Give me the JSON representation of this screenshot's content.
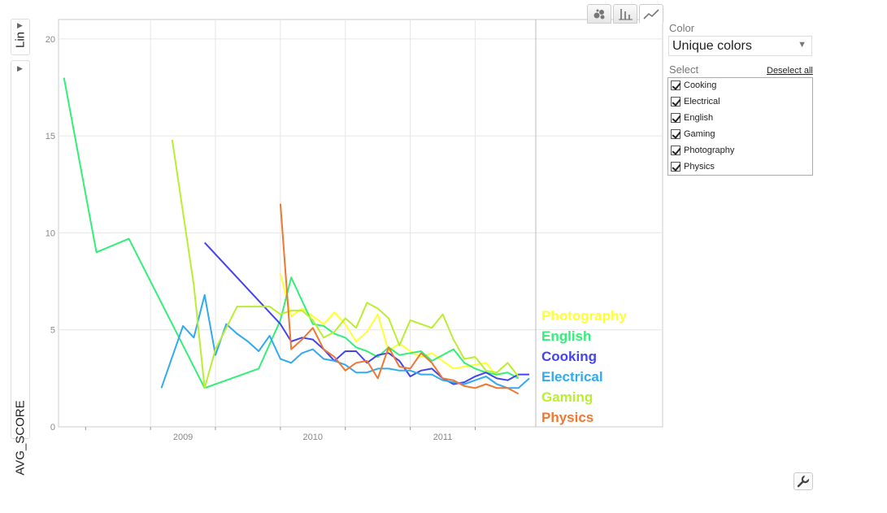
{
  "sidebar": {
    "scale_label": "Lin"
  },
  "view_buttons": [
    {
      "icon": "bubble-chart-icon"
    },
    {
      "icon": "bar-chart-icon"
    },
    {
      "icon": "line-chart-icon"
    }
  ],
  "panel": {
    "color_label": "Color",
    "color_value": "Unique colors",
    "select_label": "Select",
    "deselect_label": "Deselect all",
    "items": [
      "Cooking",
      "Electrical",
      "English",
      "Gaming",
      "Photography",
      "Physics"
    ]
  },
  "chart_data": {
    "type": "line",
    "title": "",
    "xlabel": "",
    "ylabel": "AVG_SCORE",
    "ylim": [
      0,
      21
    ],
    "yticks": [
      "0",
      "5",
      "10",
      "15",
      "20"
    ],
    "xticks": [
      "2009",
      "2010",
      "2011"
    ],
    "grid": true,
    "legend": "right (end-of-line labels)",
    "series": [
      {
        "name": "Photography",
        "color": "#ffff33",
        "points": [
          [
            "2010-01",
            7.9
          ],
          [
            "2010-02",
            5.7
          ],
          [
            "2010-03",
            6.1
          ],
          [
            "2010-04",
            5.7
          ],
          [
            "2010-05",
            5.3
          ],
          [
            "2010-06",
            5.9
          ],
          [
            "2010-07",
            5.3
          ],
          [
            "2010-08",
            4.4
          ],
          [
            "2010-09",
            4.9
          ],
          [
            "2010-10",
            5.8
          ],
          [
            "2010-11",
            3.9
          ],
          [
            "2010-12",
            4.3
          ],
          [
            "2011-01",
            3.9
          ],
          [
            "2011-02",
            3.6
          ],
          [
            "2011-03",
            3.8
          ],
          [
            "2011-04",
            3.4
          ],
          [
            "2011-05",
            3.0
          ],
          [
            "2011-06",
            3.1
          ],
          [
            "2011-07",
            3.2
          ],
          [
            "2011-08",
            3.3
          ],
          [
            "2011-09",
            2.6
          ]
        ]
      },
      {
        "name": "English",
        "color": "#33ee77",
        "points": [
          [
            "2008-05",
            18.0
          ],
          [
            "2008-08",
            9.0
          ],
          [
            "2008-11",
            9.7
          ],
          [
            "2009-06",
            2.0
          ],
          [
            "2009-11",
            3.0
          ],
          [
            "2010-01",
            5.5
          ],
          [
            "2010-02",
            7.7
          ],
          [
            "2010-03",
            6.5
          ],
          [
            "2010-04",
            5.3
          ],
          [
            "2010-05",
            5.2
          ],
          [
            "2010-06",
            4.8
          ],
          [
            "2010-07",
            4.6
          ],
          [
            "2010-08",
            4.1
          ],
          [
            "2010-09",
            3.9
          ],
          [
            "2010-10",
            3.6
          ],
          [
            "2010-11",
            4.1
          ],
          [
            "2010-12",
            3.7
          ],
          [
            "2011-01",
            3.8
          ],
          [
            "2011-02",
            3.9
          ],
          [
            "2011-03",
            3.4
          ],
          [
            "2011-04",
            3.7
          ],
          [
            "2011-05",
            4.0
          ],
          [
            "2011-06",
            3.3
          ],
          [
            "2011-07",
            3.0
          ],
          [
            "2011-08",
            2.8
          ],
          [
            "2011-09",
            2.7
          ],
          [
            "2011-10",
            2.8
          ],
          [
            "2011-11",
            2.5
          ]
        ]
      },
      {
        "name": "Cooking",
        "color": "#4444ee",
        "points": [
          [
            "2009-06",
            9.5
          ],
          [
            "2010-01",
            5.3
          ],
          [
            "2010-02",
            4.4
          ],
          [
            "2010-03",
            4.6
          ],
          [
            "2010-04",
            4.5
          ],
          [
            "2010-05",
            4.0
          ],
          [
            "2010-06",
            3.4
          ],
          [
            "2010-07",
            3.9
          ],
          [
            "2010-08",
            3.9
          ],
          [
            "2010-09",
            3.3
          ],
          [
            "2010-10",
            3.7
          ],
          [
            "2010-11",
            3.8
          ],
          [
            "2010-12",
            3.4
          ],
          [
            "2011-01",
            2.6
          ],
          [
            "2011-02",
            2.9
          ],
          [
            "2011-03",
            3.0
          ],
          [
            "2011-04",
            2.5
          ],
          [
            "2011-05",
            2.2
          ],
          [
            "2011-06",
            2.3
          ],
          [
            "2011-07",
            2.6
          ],
          [
            "2011-08",
            2.8
          ],
          [
            "2011-09",
            2.5
          ],
          [
            "2011-10",
            2.4
          ],
          [
            "2011-11",
            2.7
          ],
          [
            "2011-12",
            2.7
          ]
        ]
      },
      {
        "name": "Electrical",
        "color": "#33aaee",
        "points": [
          [
            "2009-02",
            2.0
          ],
          [
            "2009-04",
            5.2
          ],
          [
            "2009-05",
            4.6
          ],
          [
            "2009-06",
            6.8
          ],
          [
            "2009-07",
            3.7
          ],
          [
            "2009-08",
            5.3
          ],
          [
            "2009-09",
            4.8
          ],
          [
            "2009-10",
            4.4
          ],
          [
            "2009-11",
            3.9
          ],
          [
            "2009-12",
            4.7
          ],
          [
            "2010-01",
            3.5
          ],
          [
            "2010-02",
            3.3
          ],
          [
            "2010-03",
            3.8
          ],
          [
            "2010-04",
            4.0
          ],
          [
            "2010-05",
            3.5
          ],
          [
            "2010-06",
            3.4
          ],
          [
            "2010-07",
            3.2
          ],
          [
            "2010-08",
            2.8
          ],
          [
            "2010-09",
            2.8
          ],
          [
            "2010-10",
            3.0
          ],
          [
            "2010-11",
            3.0
          ],
          [
            "2010-12",
            2.9
          ],
          [
            "2011-01",
            2.9
          ],
          [
            "2011-02",
            2.7
          ],
          [
            "2011-03",
            2.7
          ],
          [
            "2011-04",
            2.4
          ],
          [
            "2011-05",
            2.3
          ],
          [
            "2011-06",
            2.2
          ],
          [
            "2011-07",
            2.4
          ],
          [
            "2011-08",
            2.6
          ],
          [
            "2011-09",
            2.2
          ],
          [
            "2011-10",
            2.0
          ],
          [
            "2011-11",
            2.0
          ],
          [
            "2011-12",
            2.5
          ]
        ]
      },
      {
        "name": "Gaming",
        "color": "#bbee33",
        "points": [
          [
            "2009-03",
            14.8
          ],
          [
            "2009-05",
            7.3
          ],
          [
            "2009-06",
            2.0
          ],
          [
            "2009-07",
            4.0
          ],
          [
            "2009-09",
            6.2
          ],
          [
            "2009-12",
            6.2
          ],
          [
            "2010-01",
            5.8
          ],
          [
            "2010-02",
            6.0
          ],
          [
            "2010-03",
            6.0
          ],
          [
            "2010-04",
            5.5
          ],
          [
            "2010-05",
            4.6
          ],
          [
            "2010-06",
            4.9
          ],
          [
            "2010-07",
            5.6
          ],
          [
            "2010-08",
            5.1
          ],
          [
            "2010-09",
            6.4
          ],
          [
            "2010-10",
            6.1
          ],
          [
            "2010-11",
            5.6
          ],
          [
            "2010-12",
            4.2
          ],
          [
            "2011-01",
            5.5
          ],
          [
            "2011-02",
            5.3
          ],
          [
            "2011-03",
            5.1
          ],
          [
            "2011-04",
            5.8
          ],
          [
            "2011-05",
            4.5
          ],
          [
            "2011-06",
            3.5
          ],
          [
            "2011-07",
            3.6
          ],
          [
            "2011-08",
            2.9
          ],
          [
            "2011-09",
            2.8
          ],
          [
            "2011-10",
            3.3
          ],
          [
            "2011-11",
            2.6
          ]
        ]
      },
      {
        "name": "Physics",
        "color": "#ee7733",
        "points": [
          [
            "2010-01",
            11.5
          ],
          [
            "2010-02",
            4.0
          ],
          [
            "2010-03",
            4.5
          ],
          [
            "2010-04",
            5.1
          ],
          [
            "2010-05",
            4.0
          ],
          [
            "2010-06",
            3.6
          ],
          [
            "2010-07",
            2.9
          ],
          [
            "2010-08",
            3.3
          ],
          [
            "2010-09",
            3.4
          ],
          [
            "2010-10",
            2.5
          ],
          [
            "2010-11",
            4.1
          ],
          [
            "2010-12",
            3.1
          ],
          [
            "2011-01",
            3.0
          ],
          [
            "2011-02",
            3.8
          ],
          [
            "2011-03",
            3.3
          ],
          [
            "2011-04",
            2.5
          ],
          [
            "2011-05",
            2.4
          ],
          [
            "2011-06",
            2.1
          ],
          [
            "2011-07",
            2.0
          ],
          [
            "2011-08",
            2.2
          ],
          [
            "2011-09",
            2.0
          ],
          [
            "2011-10",
            2.0
          ],
          [
            "2011-11",
            1.7
          ]
        ]
      }
    ],
    "label_order": [
      "Photography",
      "English",
      "Cooking",
      "Electrical",
      "Gaming",
      "Physics"
    ]
  }
}
